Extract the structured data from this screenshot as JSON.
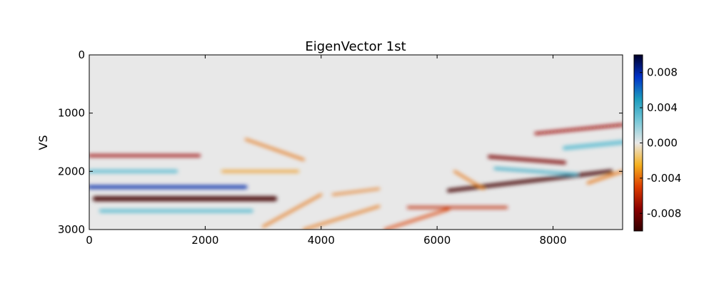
{
  "chart_data": {
    "type": "heatmap",
    "title": "EigenVector 1st",
    "xlabel": "",
    "ylabel": "VS",
    "xlim": [
      0,
      9200
    ],
    "ylim": [
      3000,
      0
    ],
    "x_ticks": [
      0,
      2000,
      4000,
      6000,
      8000
    ],
    "x_tick_labels": [
      "0",
      "2000",
      "4000",
      "6000",
      "8000"
    ],
    "y_ticks": [
      0,
      1000,
      2000,
      3000
    ],
    "y_tick_labels": [
      "0",
      "1000",
      "2000",
      "3000"
    ],
    "colorbar": {
      "range": [
        -0.01,
        0.01
      ],
      "ticks": [
        0.008,
        0.004,
        0.0,
        -0.004,
        -0.008
      ],
      "tick_labels": [
        "0.008",
        "0.004",
        "0.000",
        "-0.004",
        "-0.008"
      ],
      "colormap": [
        "#300000",
        "#8b0000",
        "#dc3c00",
        "#f5b020",
        "#e8e8e8",
        "#78c8d8",
        "#1b9bbd",
        "#0032c8",
        "#000028"
      ]
    },
    "background_value": 0.0,
    "features": [
      {
        "x0": 0,
        "x1": 1900,
        "y": 1730,
        "value": -0.007,
        "thickness": 45
      },
      {
        "x0": 0,
        "x1": 2700,
        "y": 2270,
        "value": 0.008,
        "thickness": 55
      },
      {
        "x0": 100,
        "x1": 3200,
        "y": 2470,
        "value": -0.0095,
        "thickness": 80
      },
      {
        "x0": 200,
        "x1": 2800,
        "y": 2680,
        "value": 0.003,
        "thickness": 60
      },
      {
        "x0": 0,
        "x1": 1500,
        "y": 2000,
        "value": 0.003,
        "thickness": 60
      },
      {
        "x0": 2300,
        "x1": 3600,
        "y": 2000,
        "value": -0.003,
        "thickness": 40
      },
      {
        "x0": 2700,
        "x1": 3700,
        "y": 1450,
        "y1": 1800,
        "value": -0.004,
        "thickness": 35
      },
      {
        "x0": 3000,
        "x1": 4000,
        "y": 2950,
        "y1": 2400,
        "value": -0.004,
        "thickness": 35
      },
      {
        "x0": 3700,
        "x1": 5000,
        "y": 3000,
        "y1": 2600,
        "value": -0.004,
        "thickness": 35
      },
      {
        "x0": 5100,
        "x1": 6200,
        "y": 3000,
        "y1": 2650,
        "value": -0.005,
        "thickness": 40
      },
      {
        "x0": 6200,
        "x1": 9000,
        "y": 2330,
        "y1": 2000,
        "value": -0.0095,
        "thickness": 60
      },
      {
        "x0": 6900,
        "x1": 8200,
        "y": 1750,
        "y1": 1850,
        "value": -0.008,
        "thickness": 55
      },
      {
        "x0": 7000,
        "x1": 8400,
        "y": 1950,
        "y1": 2050,
        "value": 0.004,
        "thickness": 45
      },
      {
        "x0": 7700,
        "x1": 9200,
        "y": 1350,
        "y1": 1200,
        "value": -0.007,
        "thickness": 45
      },
      {
        "x0": 8200,
        "x1": 9200,
        "y": 1600,
        "y1": 1500,
        "value": 0.003,
        "thickness": 70
      },
      {
        "x0": 5500,
        "x1": 7200,
        "y": 2620,
        "value": -0.006,
        "thickness": 40
      },
      {
        "x0": 6300,
        "x1": 6800,
        "y": 2000,
        "y1": 2300,
        "value": -0.004,
        "thickness": 35
      },
      {
        "x0": 4200,
        "x1": 5000,
        "y": 2400,
        "y1": 2300,
        "value": -0.004,
        "thickness": 30
      },
      {
        "x0": 8600,
        "x1": 9200,
        "y": 2200,
        "y1": 2000,
        "value": -0.004,
        "thickness": 40
      }
    ]
  }
}
